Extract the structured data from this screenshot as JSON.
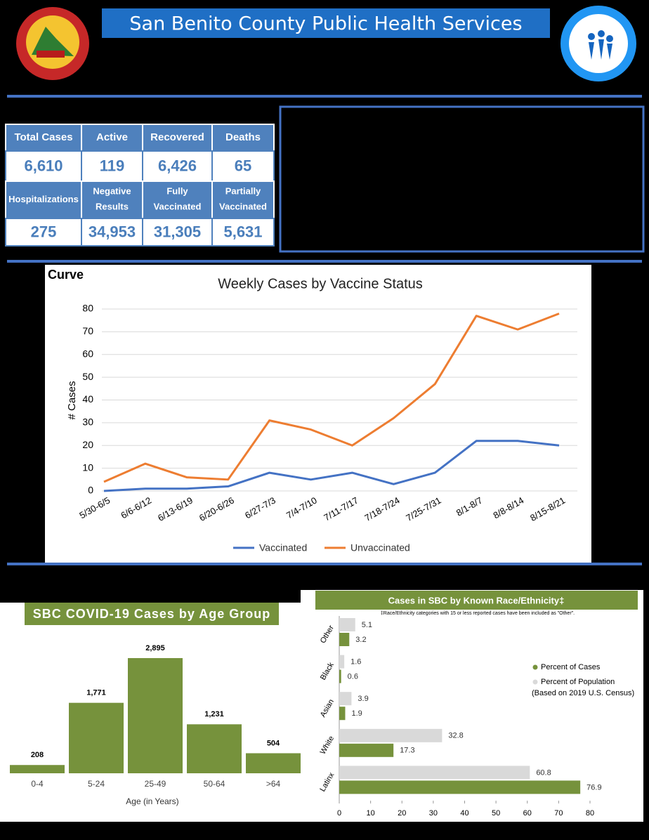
{
  "header": {
    "title": "San Benito County Public Health Services"
  },
  "stats": [
    {
      "label": "Total Cases",
      "value": "6,610"
    },
    {
      "label": "Active",
      "value": "119"
    },
    {
      "label": "Recovered",
      "value": "6,426"
    },
    {
      "label": "Deaths",
      "value": "65"
    },
    {
      "label": "Hospitalizations",
      "value": "275"
    },
    {
      "label": "Negative Results",
      "value": "34,953"
    },
    {
      "label": "Fully Vaccinated",
      "value": "31,305"
    },
    {
      "label": "Partially Vaccinated",
      "value": "5,631"
    }
  ],
  "section_label": "Curve",
  "chart_data": [
    {
      "type": "line",
      "title": "Weekly Cases by Vaccine Status",
      "y_label": "# Cases",
      "categories": [
        "5/30-6/5",
        "6/6-6/12",
        "6/13-6/19",
        "6/20-6/26",
        "6/27-7/3",
        "7/4-7/10",
        "7/11-7/17",
        "7/18-7/24",
        "7/25-7/31",
        "8/1-8/7",
        "8/8-8/14",
        "8/15-8/21"
      ],
      "series": [
        {
          "name": "Vaccinated",
          "color": "#4472c4",
          "values": [
            0,
            1,
            1,
            2,
            8,
            5,
            8,
            3,
            8,
            22,
            22,
            20
          ]
        },
        {
          "name": "Unvaccinated",
          "color": "#ed7d31",
          "values": [
            4,
            12,
            6,
            5,
            31,
            27,
            20,
            32,
            47,
            77,
            71,
            78
          ]
        }
      ],
      "ylim": [
        0,
        80
      ],
      "yticks": [
        0,
        10,
        20,
        30,
        40,
        50,
        60,
        70,
        80
      ],
      "grid": true
    },
    {
      "type": "bar",
      "title": "SBC COVID-19 Cases by Age Group",
      "x_label": "Age (in Years)",
      "color": "#76923c",
      "categories": [
        "0-4",
        "5-24",
        "25-49",
        "50-64",
        ">64"
      ],
      "values": [
        208,
        1771,
        2895,
        1231,
        504
      ],
      "value_labels": [
        "208",
        "1,771",
        "2,895",
        "1,231",
        "504"
      ]
    },
    {
      "type": "hbar",
      "title": "Cases in SBC by Known Race/Ethnicity‡",
      "note": "‡Race/Ethnicity categories with 15 or less reported cases have been included as \"Other\".",
      "categories": [
        "Other",
        "Black",
        "Asian",
        "White",
        "Latinx"
      ],
      "series": [
        {
          "name": "Percent of Population",
          "color": "#d9d9d9",
          "values": [
            5.1,
            1.6,
            3.9,
            32.8,
            60.8
          ]
        },
        {
          "name": "Percent of Cases",
          "color": "#76923c",
          "values": [
            3.2,
            0.6,
            1.9,
            17.3,
            76.9
          ]
        }
      ],
      "legend_note": "(Based on 2019 U.S. Census)",
      "xlim": [
        0,
        80
      ],
      "xticks": [
        0,
        10,
        20,
        30,
        40,
        50,
        60,
        70,
        80
      ]
    }
  ]
}
